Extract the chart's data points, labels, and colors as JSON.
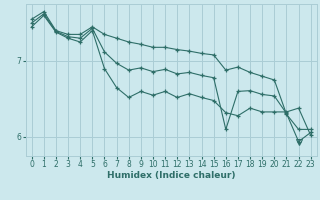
{
  "xlabel": "Humidex (Indice chaleur)",
  "bg_color": "#cce8ed",
  "grid_color": "#aacdd5",
  "line_color": "#2e6e68",
  "x_ticks": [
    0,
    1,
    2,
    3,
    4,
    5,
    6,
    7,
    8,
    9,
    10,
    11,
    12,
    13,
    14,
    15,
    16,
    17,
    18,
    19,
    20,
    21,
    22,
    23
  ],
  "y_ticks": [
    6,
    7
  ],
  "xlim": [
    -0.5,
    23.5
  ],
  "ylim": [
    5.75,
    7.75
  ],
  "line_top_x": [
    0,
    1,
    2,
    3,
    4,
    5,
    6,
    7,
    8,
    9,
    10,
    11,
    12,
    13,
    14,
    15,
    16,
    17,
    18,
    19,
    20,
    21,
    22,
    23
  ],
  "line_top_y": [
    7.55,
    7.65,
    7.4,
    7.35,
    7.35,
    7.45,
    7.35,
    7.3,
    7.25,
    7.22,
    7.18,
    7.18,
    7.15,
    7.13,
    7.1,
    7.08,
    6.88,
    6.92,
    6.85,
    6.8,
    6.75,
    6.3,
    6.1,
    6.1
  ],
  "line_bot_x": [
    0,
    1,
    2,
    3,
    4,
    5,
    6,
    7,
    8,
    9,
    10,
    11,
    12,
    13,
    14,
    15,
    16,
    17,
    18,
    19,
    20,
    21,
    22,
    23
  ],
  "line_bot_y": [
    7.45,
    7.6,
    7.38,
    7.3,
    7.25,
    7.4,
    6.9,
    6.65,
    6.52,
    6.6,
    6.55,
    6.6,
    6.52,
    6.57,
    6.52,
    6.48,
    6.32,
    6.28,
    6.38,
    6.33,
    6.33,
    6.33,
    6.38,
    6.02
  ],
  "line_zig_x": [
    0,
    1,
    2,
    3,
    4,
    5,
    6,
    7,
    8,
    9,
    10,
    11,
    12,
    13,
    14,
    15,
    16,
    17,
    18,
    19,
    20,
    21,
    22,
    23
  ],
  "line_zig_y": [
    7.5,
    7.62,
    7.39,
    7.32,
    7.3,
    7.43,
    7.12,
    6.97,
    6.88,
    6.91,
    6.86,
    6.89,
    6.83,
    6.85,
    6.81,
    6.78,
    6.1,
    6.6,
    6.61,
    6.56,
    6.54,
    6.31,
    5.94,
    6.06
  ],
  "tick_fontsize": 5.5,
  "xlabel_fontsize": 6.5
}
